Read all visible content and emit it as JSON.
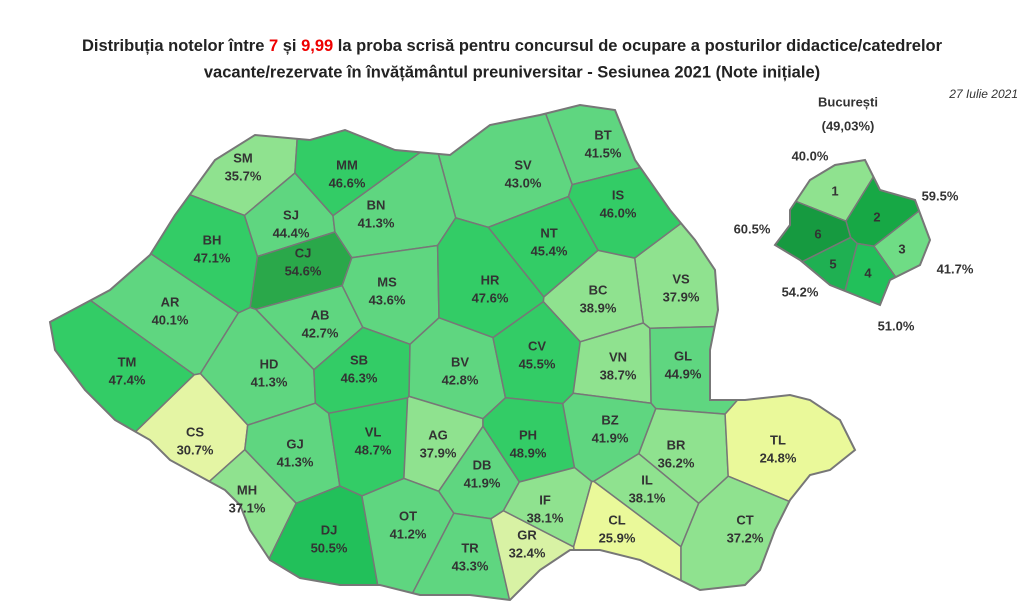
{
  "title_parts": [
    "Distribuția notelor între ",
    "7",
    " și ",
    "9,99",
    " la proba scrisă pentru concursul de ocupare a posturilor didactice/catedrelor"
  ],
  "title_line2": "vacante/rezervate în învățământul preuniversitar - Sesiunea 2021 (Note inițiale)",
  "date": "27 Iulie 2021",
  "regions": [
    {
      "code": "SM",
      "value": 35.7,
      "label": "35.7%",
      "color": "#8fe28f"
    },
    {
      "code": "MM",
      "value": 46.6,
      "label": "46.6%",
      "color": "#33cc66"
    },
    {
      "code": "BT",
      "value": 41.5,
      "label": "41.5%",
      "color": "#5fd680"
    },
    {
      "code": "SV",
      "value": 43.0,
      "label": "43.0%",
      "color": "#5fd680"
    },
    {
      "code": "IS",
      "value": 46.0,
      "label": "46.0%",
      "color": "#33cc66"
    },
    {
      "code": "BH",
      "value": 47.1,
      "label": "47.1%",
      "color": "#33cc66"
    },
    {
      "code": "SJ",
      "value": 44.4,
      "label": "44.4%",
      "color": "#5fd680"
    },
    {
      "code": "BN",
      "value": 41.3,
      "label": "41.3%",
      "color": "#5fd680"
    },
    {
      "code": "CJ",
      "value": 54.6,
      "label": "54.6%",
      "color": "#2aa84a"
    },
    {
      "code": "NT",
      "value": 45.4,
      "label": "45.4%",
      "color": "#33cc66"
    },
    {
      "code": "VS",
      "value": 37.9,
      "label": "37.9%",
      "color": "#8fe28f"
    },
    {
      "code": "AR",
      "value": 40.1,
      "label": "40.1%",
      "color": "#5fd680"
    },
    {
      "code": "AB",
      "value": 42.7,
      "label": "42.7%",
      "color": "#5fd680"
    },
    {
      "code": "MS",
      "value": 43.6,
      "label": "43.6%",
      "color": "#5fd680"
    },
    {
      "code": "HR",
      "value": 47.6,
      "label": "47.6%",
      "color": "#33cc66"
    },
    {
      "code": "BC",
      "value": 38.9,
      "label": "38.9%",
      "color": "#8fe28f"
    },
    {
      "code": "TM",
      "value": 47.4,
      "label": "47.4%",
      "color": "#33cc66"
    },
    {
      "code": "HD",
      "value": 41.3,
      "label": "41.3%",
      "color": "#5fd680"
    },
    {
      "code": "SB",
      "value": 46.3,
      "label": "46.3%",
      "color": "#33cc66"
    },
    {
      "code": "BV",
      "value": 42.8,
      "label": "42.8%",
      "color": "#5fd680"
    },
    {
      "code": "CV",
      "value": 45.5,
      "label": "45.5%",
      "color": "#33cc66"
    },
    {
      "code": "VN",
      "value": 38.7,
      "label": "38.7%",
      "color": "#8fe28f"
    },
    {
      "code": "GL",
      "value": 44.9,
      "label": "44.9%",
      "color": "#5fd680"
    },
    {
      "code": "CS",
      "value": 30.7,
      "label": "30.7%",
      "color": "#e4f5a4"
    },
    {
      "code": "GJ",
      "value": 41.3,
      "label": "41.3%",
      "color": "#5fd680"
    },
    {
      "code": "VL",
      "value": 48.7,
      "label": "48.7%",
      "color": "#33cc66"
    },
    {
      "code": "AG",
      "value": 37.9,
      "label": "37.9%",
      "color": "#8fe28f"
    },
    {
      "code": "PH",
      "value": 48.9,
      "label": "48.9%",
      "color": "#33cc66"
    },
    {
      "code": "BZ",
      "value": 41.9,
      "label": "41.9%",
      "color": "#5fd680"
    },
    {
      "code": "BR",
      "value": 36.2,
      "label": "36.2%",
      "color": "#8fe28f"
    },
    {
      "code": "TL",
      "value": 24.8,
      "label": "24.8%",
      "color": "#eaf99a"
    },
    {
      "code": "DB",
      "value": 41.9,
      "label": "41.9%",
      "color": "#5fd680"
    },
    {
      "code": "MH",
      "value": 37.1,
      "label": "37.1%",
      "color": "#8fe28f"
    },
    {
      "code": "DJ",
      "value": 50.5,
      "label": "50.5%",
      "color": "#22c05a"
    },
    {
      "code": "OT",
      "value": 41.2,
      "label": "41.2%",
      "color": "#5fd680"
    },
    {
      "code": "TR",
      "value": 43.3,
      "label": "43.3%",
      "color": "#5fd680"
    },
    {
      "code": "GR",
      "value": 32.4,
      "label": "32.4%",
      "color": "#d8f2a4"
    },
    {
      "code": "IF",
      "value": 38.1,
      "label": "38.1%",
      "color": "#8fe28f"
    },
    {
      "code": "IL",
      "value": 38.1,
      "label": "38.1%",
      "color": "#8fe28f"
    },
    {
      "code": "CL",
      "value": 25.9,
      "label": "25.9%",
      "color": "#eaf99a"
    },
    {
      "code": "CT",
      "value": 37.2,
      "label": "37.2%",
      "color": "#8fe28f"
    }
  ],
  "bucharest": {
    "name": "București",
    "value": 49.03,
    "label": "(49,03%)",
    "sectors": [
      {
        "number": 1,
        "value": 40.0,
        "label": "40.0%",
        "color": "#8fe28f"
      },
      {
        "number": 2,
        "value": 59.5,
        "label": "59.5%",
        "color": "#17a845"
      },
      {
        "number": 3,
        "value": 41.7,
        "label": "41.7%",
        "color": "#6fdc85"
      },
      {
        "number": 4,
        "value": 51.0,
        "label": "51.0%",
        "color": "#22c05a"
      },
      {
        "number": 5,
        "value": 54.2,
        "label": "54.2%",
        "color": "#1fb052"
      },
      {
        "number": 6,
        "value": 60.5,
        "label": "60.5%",
        "color": "#169a40"
      }
    ]
  }
}
